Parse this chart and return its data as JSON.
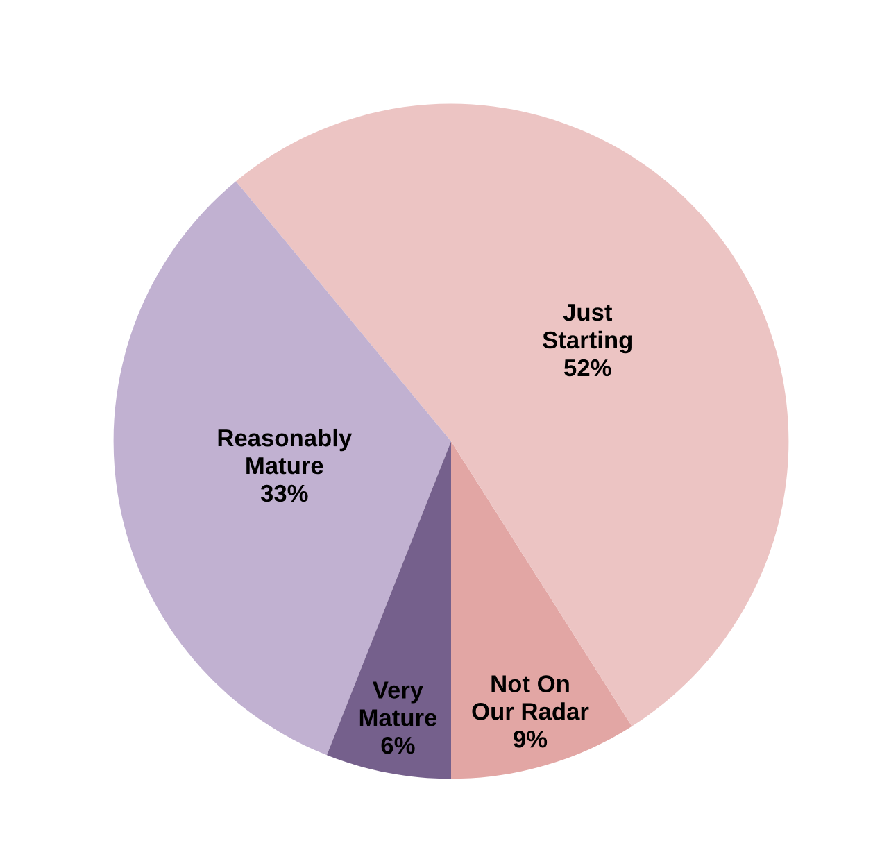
{
  "chart_data": {
    "type": "pie",
    "categories": [
      "Not On\nOur Radar",
      "Just\nStarting",
      "Reasonably\nMature",
      "Very\nMature"
    ],
    "values": [
      9,
      52,
      33,
      6
    ],
    "value_labels": [
      "9%",
      "52%",
      "33%",
      "6%"
    ],
    "colors": [
      "#e2a6a4",
      "#ecc4c3",
      "#c1b1d1",
      "#75608c"
    ]
  }
}
